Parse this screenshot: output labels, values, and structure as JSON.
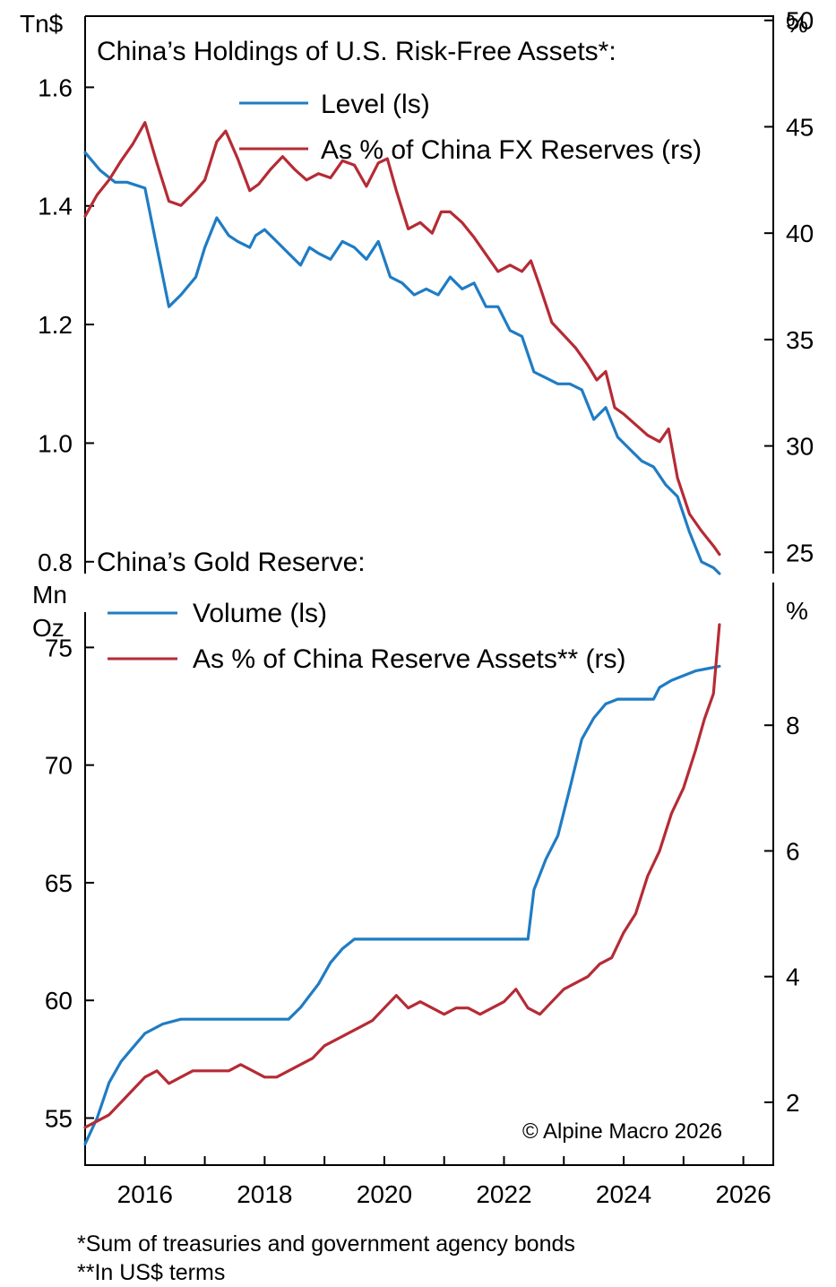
{
  "colors": {
    "blue": "#1f7cc4",
    "red": "#b52b35",
    "axis": "#000000"
  },
  "footnotes": [
    "*Sum of treasuries and government agency bonds",
    "**In US$ terms"
  ],
  "chart_data": [
    {
      "type": "line",
      "title": "China’s Holdings of U.S. Risk-Free Assets*:",
      "left_unit": "Tn$",
      "right_unit": "%",
      "yleft": {
        "ylim": [
          0.78,
          1.72
        ],
        "ticks": [
          0.8,
          1.0,
          1.2,
          1.4,
          1.6
        ],
        "tick_labels": [
          "0.8",
          "1.0",
          "1.2",
          "1.4",
          "1.6"
        ]
      },
      "yright": {
        "ylim": [
          24,
          50.2
        ],
        "ticks": [
          25,
          30,
          35,
          40,
          45,
          50
        ],
        "tick_labels": [
          "25",
          "30",
          "35",
          "40",
          "45",
          "50"
        ]
      },
      "xlim": [
        2015.0,
        2026.5
      ],
      "legend": "top-right",
      "series": [
        {
          "name": "Level (ls)",
          "axis": "left",
          "color": "blue",
          "x": [
            2015.0,
            2015.25,
            2015.5,
            2015.7,
            2016.0,
            2016.2,
            2016.4,
            2016.6,
            2016.85,
            2017.0,
            2017.2,
            2017.4,
            2017.55,
            2017.75,
            2017.85,
            2018.0,
            2018.2,
            2018.4,
            2018.6,
            2018.75,
            2018.9,
            2019.1,
            2019.3,
            2019.5,
            2019.7,
            2019.9,
            2020.1,
            2020.3,
            2020.5,
            2020.7,
            2020.9,
            2021.1,
            2021.3,
            2021.5,
            2021.7,
            2021.9,
            2022.1,
            2022.3,
            2022.5,
            2022.7,
            2022.9,
            2023.1,
            2023.3,
            2023.5,
            2023.7,
            2023.9,
            2024.1,
            2024.3,
            2024.5,
            2024.7,
            2024.9,
            2025.1,
            2025.3,
            2025.5,
            2025.6
          ],
          "values": [
            1.49,
            1.46,
            1.44,
            1.44,
            1.43,
            1.33,
            1.23,
            1.25,
            1.28,
            1.33,
            1.38,
            1.35,
            1.34,
            1.33,
            1.35,
            1.36,
            1.34,
            1.32,
            1.3,
            1.33,
            1.32,
            1.31,
            1.34,
            1.33,
            1.31,
            1.34,
            1.28,
            1.27,
            1.25,
            1.26,
            1.25,
            1.28,
            1.26,
            1.27,
            1.23,
            1.23,
            1.19,
            1.18,
            1.12,
            1.11,
            1.1,
            1.1,
            1.09,
            1.04,
            1.06,
            1.01,
            0.99,
            0.97,
            0.96,
            0.93,
            0.91,
            0.85,
            0.8,
            0.79,
            0.78
          ]
        },
        {
          "name": "As % of China FX Reserves (rs)",
          "axis": "right",
          "color": "red",
          "x": [
            2015.0,
            2015.2,
            2015.4,
            2015.6,
            2015.8,
            2016.0,
            2016.2,
            2016.4,
            2016.6,
            2016.85,
            2017.0,
            2017.2,
            2017.35,
            2017.55,
            2017.75,
            2017.9,
            2018.1,
            2018.3,
            2018.5,
            2018.7,
            2018.9,
            2019.1,
            2019.3,
            2019.5,
            2019.7,
            2019.9,
            2020.05,
            2020.2,
            2020.4,
            2020.6,
            2020.8,
            2020.95,
            2021.1,
            2021.3,
            2021.5,
            2021.7,
            2021.9,
            2022.1,
            2022.3,
            2022.45,
            2022.6,
            2022.8,
            2023.0,
            2023.2,
            2023.4,
            2023.55,
            2023.7,
            2023.85,
            2024.0,
            2024.2,
            2024.4,
            2024.6,
            2024.75,
            2024.9,
            2025.1,
            2025.3,
            2025.5,
            2025.6
          ],
          "values": [
            40.8,
            41.8,
            42.5,
            43.4,
            44.2,
            45.2,
            43.3,
            41.5,
            41.3,
            42.0,
            42.5,
            44.3,
            44.8,
            43.5,
            42.0,
            42.3,
            43.0,
            43.6,
            43.0,
            42.5,
            42.8,
            42.6,
            43.4,
            43.2,
            42.2,
            43.3,
            43.5,
            42.0,
            40.2,
            40.5,
            40.0,
            41.0,
            41.0,
            40.5,
            39.8,
            39.0,
            38.2,
            38.5,
            38.2,
            38.7,
            37.5,
            35.8,
            35.2,
            34.6,
            33.8,
            33.1,
            33.5,
            31.8,
            31.5,
            31.0,
            30.5,
            30.2,
            30.8,
            28.5,
            26.8,
            26.0,
            25.3,
            24.9
          ]
        }
      ]
    },
    {
      "type": "line",
      "title": "China’s Gold Reserve:",
      "left_unit": "Mn\nOz",
      "right_unit": "%",
      "yleft": {
        "ylim": [
          53.0,
          76.5
        ],
        "ticks": [
          55,
          60,
          65,
          70,
          75
        ],
        "tick_labels": [
          "55",
          "60",
          "65",
          "70",
          "75"
        ]
      },
      "yright": {
        "ylim": [
          1.0,
          9.8
        ],
        "ticks": [
          2,
          4,
          6,
          8
        ],
        "tick_labels": [
          "2",
          "4",
          "6",
          "8"
        ]
      },
      "xlim": [
        2015.0,
        2026.5
      ],
      "x_ticks": [
        2016,
        2018,
        2020,
        2022,
        2024,
        2026
      ],
      "x_tick_labels": [
        "2016",
        "2018",
        "2020",
        "2022",
        "2024",
        "2026"
      ],
      "legend": "top-left",
      "annotation": "© Alpine Macro 2026",
      "series": [
        {
          "name": "Volume (ls)",
          "axis": "left",
          "color": "blue",
          "x": [
            2015.0,
            2015.2,
            2015.4,
            2015.6,
            2015.8,
            2016.0,
            2016.3,
            2016.6,
            2017.0,
            2017.5,
            2018.0,
            2018.4,
            2018.6,
            2018.9,
            2019.1,
            2019.3,
            2019.5,
            2020.0,
            2021.0,
            2022.0,
            2022.4,
            2022.5,
            2022.7,
            2022.9,
            2023.1,
            2023.3,
            2023.5,
            2023.7,
            2023.9,
            2024.1,
            2024.5,
            2024.6,
            2024.8,
            2025.0,
            2025.2,
            2025.4,
            2025.6
          ],
          "values": [
            53.9,
            55.0,
            56.5,
            57.4,
            58.0,
            58.6,
            59.0,
            59.2,
            59.2,
            59.2,
            59.2,
            59.2,
            59.7,
            60.7,
            61.6,
            62.2,
            62.6,
            62.6,
            62.6,
            62.6,
            62.6,
            64.7,
            66.0,
            67.0,
            69.0,
            71.1,
            72.0,
            72.6,
            72.8,
            72.8,
            72.8,
            73.3,
            73.6,
            73.8,
            74.0,
            74.1,
            74.2
          ]
        },
        {
          "name": "As % of China Reserve Assets** (rs)",
          "axis": "right",
          "color": "red",
          "x": [
            2015.0,
            2015.2,
            2015.4,
            2015.6,
            2015.8,
            2016.0,
            2016.2,
            2016.4,
            2016.6,
            2016.8,
            2017.0,
            2017.2,
            2017.4,
            2017.6,
            2017.8,
            2018.0,
            2018.2,
            2018.4,
            2018.6,
            2018.8,
            2019.0,
            2019.2,
            2019.4,
            2019.6,
            2019.8,
            2020.0,
            2020.2,
            2020.4,
            2020.6,
            2020.8,
            2021.0,
            2021.2,
            2021.4,
            2021.6,
            2021.8,
            2022.0,
            2022.2,
            2022.4,
            2022.6,
            2022.8,
            2023.0,
            2023.2,
            2023.4,
            2023.6,
            2023.8,
            2024.0,
            2024.2,
            2024.4,
            2024.6,
            2024.8,
            2025.0,
            2025.2,
            2025.35,
            2025.5,
            2025.6
          ],
          "values": [
            1.6,
            1.7,
            1.8,
            2.0,
            2.2,
            2.4,
            2.5,
            2.3,
            2.4,
            2.5,
            2.5,
            2.5,
            2.5,
            2.6,
            2.5,
            2.4,
            2.4,
            2.5,
            2.6,
            2.7,
            2.9,
            3.0,
            3.1,
            3.2,
            3.3,
            3.5,
            3.7,
            3.5,
            3.6,
            3.5,
            3.4,
            3.5,
            3.5,
            3.4,
            3.5,
            3.6,
            3.8,
            3.5,
            3.4,
            3.6,
            3.8,
            3.9,
            4.0,
            4.2,
            4.3,
            4.7,
            5.0,
            5.6,
            6.0,
            6.6,
            7.0,
            7.6,
            8.1,
            8.5,
            9.6
          ]
        }
      ]
    }
  ]
}
